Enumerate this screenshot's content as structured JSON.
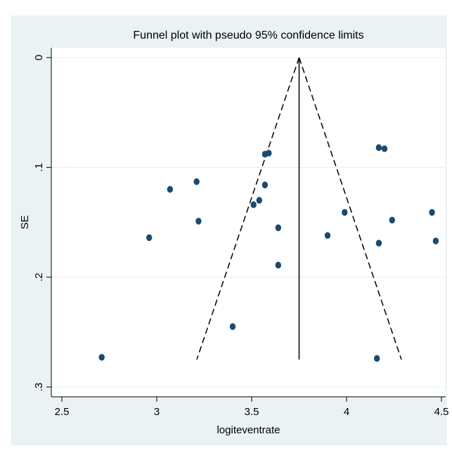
{
  "chart_data": {
    "type": "scatter",
    "title": "Funnel plot with pseudo 95% confidence limits",
    "xlabel": "logiteventrate",
    "ylabel": "SE",
    "xlim": [
      2.5,
      4.5
    ],
    "ylim": [
      0,
      0.3
    ],
    "y_reversed": true,
    "grid": true,
    "x_ticks": [
      2.5,
      3,
      3.5,
      4,
      4.5
    ],
    "x_tick_labels": [
      "2.5",
      "3",
      "3.5",
      "4",
      "4.5"
    ],
    "y_ticks": [
      0,
      0.1,
      0.2,
      0.3
    ],
    "y_tick_labels": [
      "0",
      ".1",
      ".2",
      ".3"
    ],
    "pooled_estimate": 3.75,
    "se_max": 0.275,
    "points": [
      {
        "x": 2.71,
        "y": 0.273
      },
      {
        "x": 2.96,
        "y": 0.164
      },
      {
        "x": 3.07,
        "y": 0.12
      },
      {
        "x": 3.21,
        "y": 0.113
      },
      {
        "x": 3.22,
        "y": 0.149
      },
      {
        "x": 3.4,
        "y": 0.245
      },
      {
        "x": 3.51,
        "y": 0.134
      },
      {
        "x": 3.54,
        "y": 0.13
      },
      {
        "x": 3.57,
        "y": 0.116
      },
      {
        "x": 3.57,
        "y": 0.088
      },
      {
        "x": 3.59,
        "y": 0.087
      },
      {
        "x": 3.64,
        "y": 0.155
      },
      {
        "x": 3.64,
        "y": 0.189
      },
      {
        "x": 3.9,
        "y": 0.162
      },
      {
        "x": 3.99,
        "y": 0.141
      },
      {
        "x": 4.16,
        "y": 0.274
      },
      {
        "x": 4.17,
        "y": 0.082
      },
      {
        "x": 4.17,
        "y": 0.169
      },
      {
        "x": 4.2,
        "y": 0.083
      },
      {
        "x": 4.24,
        "y": 0.148
      },
      {
        "x": 4.45,
        "y": 0.141
      },
      {
        "x": 4.47,
        "y": 0.167
      }
    ],
    "colors": {
      "background": "#eaf2f3",
      "plot_area": "#ffffff",
      "points": "#1a4a70",
      "lines": "#000000",
      "grid": "#e4ecef"
    }
  }
}
